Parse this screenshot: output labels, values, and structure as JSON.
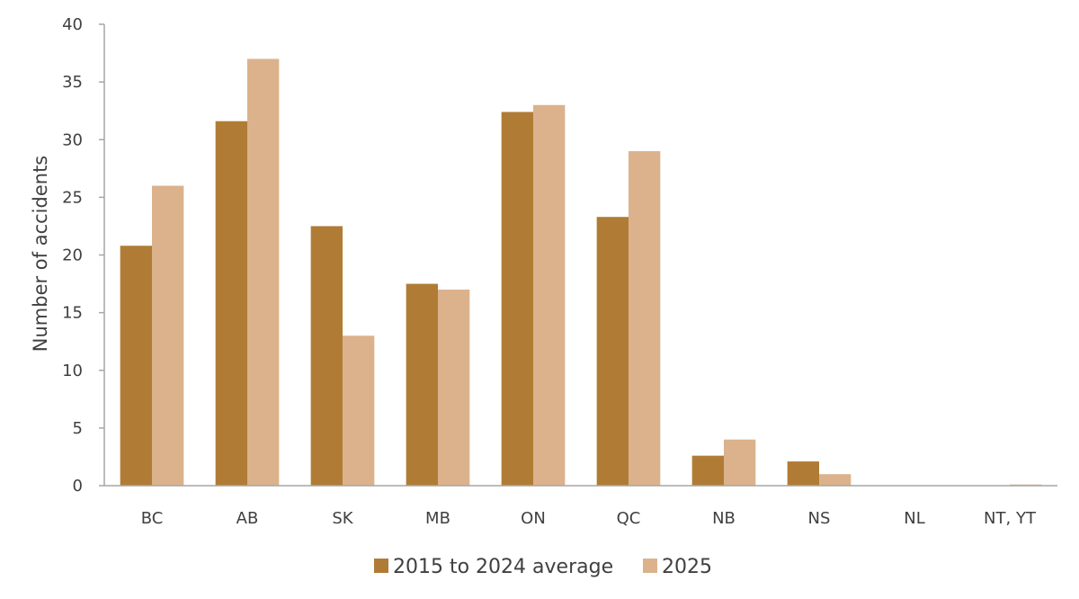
{
  "chart_data": {
    "type": "bar",
    "title": "",
    "xlabel": "",
    "ylabel": "Number of accidents",
    "ylim": [
      0,
      40
    ],
    "yticks": [
      0,
      5,
      10,
      15,
      20,
      25,
      30,
      35,
      40
    ],
    "categories": [
      "BC",
      "AB",
      "SK",
      "MB",
      "ON",
      "QC",
      "NB",
      "NS",
      "NL",
      "NT, YT"
    ],
    "series": [
      {
        "name": "2015 to 2024 average",
        "color": "#B07C35",
        "values": [
          20.8,
          31.6,
          22.5,
          17.5,
          32.4,
          23.3,
          2.6,
          2.1,
          0,
          0
        ]
      },
      {
        "name": "2025",
        "color": "#DBB28C",
        "values": [
          26,
          37,
          13,
          17,
          33,
          29,
          4,
          1,
          0,
          0.1
        ]
      }
    ],
    "grid": false,
    "legend_position": "bottom-center"
  }
}
